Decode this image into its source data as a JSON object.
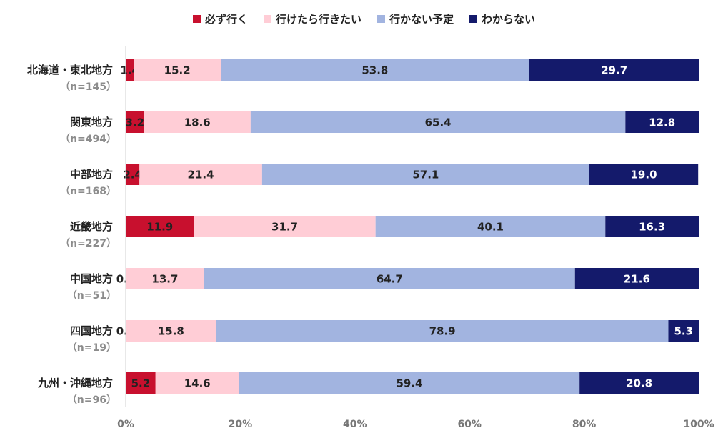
{
  "legend": [
    {
      "label": "必ず行く",
      "color": "#c8102e"
    },
    {
      "label": "行けたら行きたい",
      "color": "#ffcdd6"
    },
    {
      "label": "行かない予定",
      "color": "#a2b4e0"
    },
    {
      "label": "わからない",
      "color": "#141a6b"
    }
  ],
  "chart_data": {
    "type": "bar",
    "orientation": "horizontal",
    "stacked": true,
    "categories": [
      {
        "name": "北海道・東北地方",
        "n": "（n=145）"
      },
      {
        "name": "関東地方",
        "n": "（n=494）"
      },
      {
        "name": "中部地方",
        "n": "（n=168）"
      },
      {
        "name": "近畿地方",
        "n": "（n=227）"
      },
      {
        "name": "中国地方",
        "n": "（n=51）"
      },
      {
        "name": "四国地方",
        "n": "（n=19）"
      },
      {
        "name": "九州・沖縄地方",
        "n": "（n=96）"
      }
    ],
    "series": [
      {
        "name": "必ず行く",
        "color": "#c8102e",
        "label_color": "#222222",
        "values": [
          1.4,
          3.2,
          2.4,
          11.9,
          0.0,
          0.0,
          5.2
        ]
      },
      {
        "name": "行けたら行きたい",
        "color": "#ffcdd6",
        "label_color": "#222222",
        "values": [
          15.2,
          18.6,
          21.4,
          31.7,
          13.7,
          15.8,
          14.6
        ]
      },
      {
        "name": "行かない予定",
        "color": "#a2b4e0",
        "label_color": "#222222",
        "values": [
          53.8,
          65.4,
          57.1,
          40.1,
          64.7,
          78.9,
          59.4
        ]
      },
      {
        "name": "わからない",
        "color": "#141a6b",
        "label_color": "#ffffff",
        "values": [
          29.7,
          12.8,
          19.0,
          16.3,
          21.6,
          5.3,
          20.8
        ]
      }
    ],
    "xlim": [
      0,
      100
    ],
    "xticks": [
      "0%",
      "20%",
      "40%",
      "60%",
      "80%",
      "100%"
    ],
    "xlabel": "",
    "ylabel": "",
    "grid": false,
    "legend_position": "top"
  }
}
